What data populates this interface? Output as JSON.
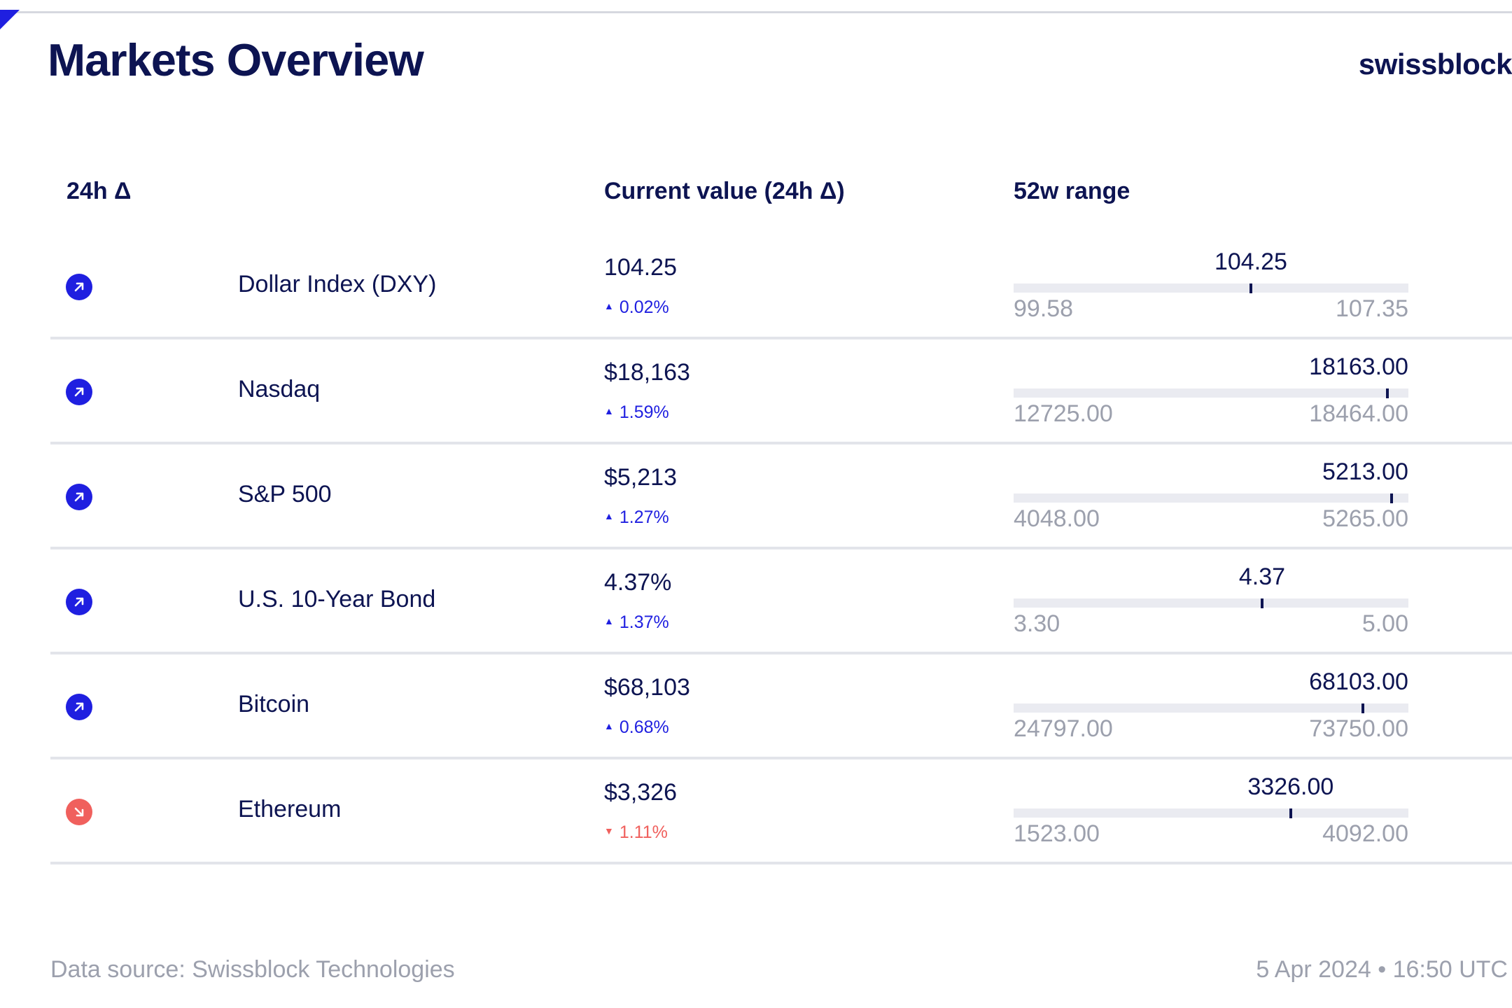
{
  "header": {
    "title": "Markets Overview",
    "logo": "swissblock"
  },
  "table": {
    "columns": [
      "24h Δ",
      "Current value (24h Δ)",
      "52w range"
    ],
    "rows": [
      {
        "name": "Dollar Index (DXY)",
        "value": "104.25",
        "change": "0.02%",
        "direction": "up",
        "range_current": "104.25",
        "range_low": "99.58",
        "range_high": "107.35",
        "current_num": 104.25,
        "low_num": 99.58,
        "high_num": 107.35
      },
      {
        "name": "Nasdaq",
        "value": "$18,163",
        "change": "1.59%",
        "direction": "up",
        "range_current": "18163.00",
        "range_low": "12725.00",
        "range_high": "18464.00",
        "current_num": 18163.0,
        "low_num": 12725.0,
        "high_num": 18464.0
      },
      {
        "name": "S&P 500",
        "value": "$5,213",
        "change": "1.27%",
        "direction": "up",
        "range_current": "5213.00",
        "range_low": "4048.00",
        "range_high": "5265.00",
        "current_num": 5213.0,
        "low_num": 4048.0,
        "high_num": 5265.0
      },
      {
        "name": "U.S. 10-Year Bond",
        "value": "4.37%",
        "change": "1.37%",
        "direction": "up",
        "range_current": "4.37",
        "range_low": "3.30",
        "range_high": "5.00",
        "current_num": 4.37,
        "low_num": 3.3,
        "high_num": 5.0
      },
      {
        "name": "Bitcoin",
        "value": "$68,103",
        "change": "0.68%",
        "direction": "up",
        "range_current": "68103.00",
        "range_low": "24797.00",
        "range_high": "73750.00",
        "current_num": 68103.0,
        "low_num": 24797.0,
        "high_num": 73750.0
      },
      {
        "name": "Ethereum",
        "value": "$3,326",
        "change": "1.11%",
        "direction": "down",
        "range_current": "3326.00",
        "range_low": "1523.00",
        "range_high": "4092.00",
        "current_num": 3326.0,
        "low_num": 1523.0,
        "high_num": 4092.0
      }
    ]
  },
  "footer": {
    "source": "Data source: Swissblock Technologies",
    "timestamp": "5 Apr 2024 • 16:50 UTC"
  },
  "colors": {
    "navy": "#0d1452",
    "accent_blue": "#1f1fe0",
    "negative_red": "#f0605d",
    "muted_gray": "#9ca0ad",
    "bar_bg": "#eaebf1"
  }
}
